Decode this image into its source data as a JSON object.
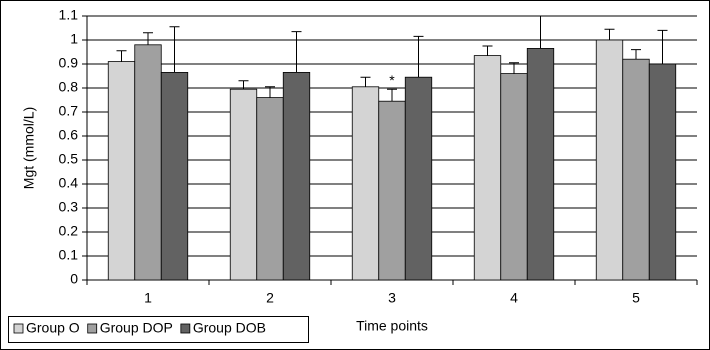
{
  "chart_data": {
    "type": "bar",
    "y_label": "Mgt (mmol/L)",
    "x_label": "Time points",
    "categories": [
      "1",
      "2",
      "3",
      "4",
      "5"
    ],
    "series": [
      {
        "name": "Group O",
        "color": "#d4d4d4",
        "values": [
          0.91,
          0.795,
          0.805,
          0.935,
          1.0
        ],
        "errors": [
          0.045,
          0.035,
          0.04,
          0.04,
          0.045
        ]
      },
      {
        "name": "Group DOP",
        "color": "#a0a0a0",
        "values": [
          0.98,
          0.76,
          0.745,
          0.86,
          0.92
        ],
        "errors": [
          0.05,
          0.045,
          0.05,
          0.045,
          0.04
        ]
      },
      {
        "name": "Group DOB",
        "color": "#626262",
        "values": [
          0.865,
          0.865,
          0.845,
          0.965,
          0.9
        ],
        "errors": [
          0.19,
          0.17,
          0.17,
          0.135,
          0.14
        ]
      }
    ],
    "annotations": [
      {
        "text": "*",
        "series": 1,
        "category": 2
      }
    ],
    "ylim": [
      0,
      1.1
    ],
    "yticks": [
      0,
      0.1,
      0.2,
      0.3,
      0.4,
      0.5,
      0.6,
      0.7,
      0.8,
      0.9,
      1,
      1.1
    ],
    "grid": true
  }
}
